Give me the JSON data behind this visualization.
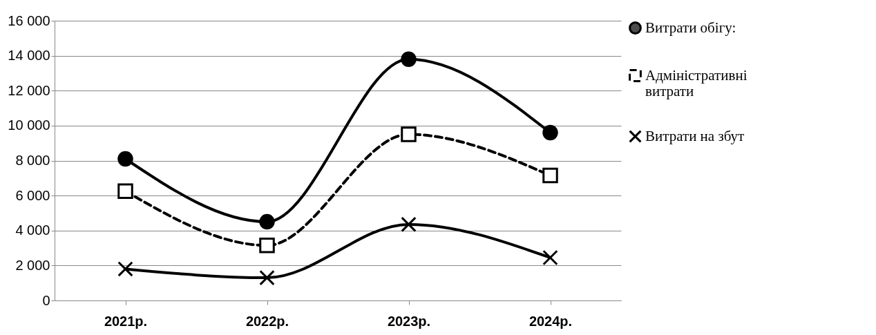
{
  "chart_data": {
    "type": "line",
    "categories": [
      "2021р.",
      "2022р.",
      "2023р.",
      "2024р."
    ],
    "series": [
      {
        "name": "Витрати обігу:",
        "color": "#000000",
        "values": [
          8100,
          4500,
          13800,
          9600
        ],
        "marker": "circle",
        "line_style": "solid"
      },
      {
        "name": "Адміністративні витрати",
        "color": "#000000",
        "values": [
          6250,
          3150,
          9500,
          7150
        ],
        "marker": "square",
        "line_style": "dashed"
      },
      {
        "name": "Витрати на збут",
        "color": "#000000",
        "values": [
          1800,
          1300,
          4350,
          2450
        ],
        "marker": "cross",
        "line_style": "solid"
      }
    ],
    "ylim": [
      0,
      16000
    ],
    "yticks": [
      0,
      {
        "value": 2000,
        "label": "2 000"
      },
      {
        "value": 4000,
        "label": "4 000"
      },
      {
        "value": 6000,
        "label": "6 000"
      },
      {
        "value": 8000,
        "label": "8 000"
      },
      {
        "value": 10000,
        "label": "10 000"
      },
      {
        "value": 12000,
        "label": "12 000"
      },
      {
        "value": 14000,
        "label": "14 000"
      },
      {
        "value": 16000,
        "label": "16 000"
      }
    ],
    "grid": "y",
    "legend": "right"
  }
}
